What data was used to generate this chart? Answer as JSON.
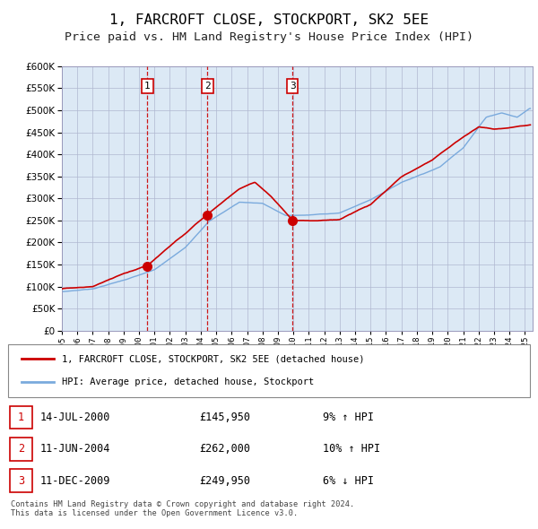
{
  "title": "1, FARCROFT CLOSE, STOCKPORT, SK2 5EE",
  "subtitle": "Price paid vs. HM Land Registry's House Price Index (HPI)",
  "title_fontsize": 11.5,
  "subtitle_fontsize": 9.5,
  "plot_bg_color": "#dce9f5",
  "ylim": [
    0,
    600000
  ],
  "yticks": [
    0,
    50000,
    100000,
    150000,
    200000,
    250000,
    300000,
    350000,
    400000,
    450000,
    500000,
    550000,
    600000
  ],
  "xlim_start": 1995.0,
  "xlim_end": 2025.5,
  "xtick_years": [
    1995,
    1996,
    1997,
    1998,
    1999,
    2000,
    2001,
    2002,
    2003,
    2004,
    2005,
    2006,
    2007,
    2008,
    2009,
    2010,
    2011,
    2012,
    2013,
    2014,
    2015,
    2016,
    2017,
    2018,
    2019,
    2020,
    2021,
    2022,
    2023,
    2024,
    2025
  ],
  "grid_color": "#b0b8d0",
  "sale_color": "#cc0000",
  "hpi_color": "#7aaadd",
  "vline_color": "#cc0000",
  "marker_size": 7,
  "transactions": [
    {
      "date_num": 2000.54,
      "price": 145950,
      "label": "1"
    },
    {
      "date_num": 2004.44,
      "price": 262000,
      "label": "2"
    },
    {
      "date_num": 2009.95,
      "price": 249950,
      "label": "3"
    }
  ],
  "table_rows": [
    {
      "num": "1",
      "date": "14-JUL-2000",
      "price": "£145,950",
      "change": "9% ↑ HPI"
    },
    {
      "num": "2",
      "date": "11-JUN-2004",
      "price": "£262,000",
      "change": "10% ↑ HPI"
    },
    {
      "num": "3",
      "date": "11-DEC-2009",
      "price": "£249,950",
      "change": "6% ↓ HPI"
    }
  ],
  "legend_sale_label": "1, FARCROFT CLOSE, STOCKPORT, SK2 5EE (detached house)",
  "legend_hpi_label": "HPI: Average price, detached house, Stockport",
  "footer": "Contains HM Land Registry data © Crown copyright and database right 2024.\nThis data is licensed under the Open Government Licence v3.0.",
  "number_box_color": "#cc0000",
  "sale_ctrl_t": [
    1995.0,
    1997.0,
    1999.0,
    2000.54,
    2002.5,
    2004.44,
    2006.5,
    2007.5,
    2008.5,
    2009.95,
    2011.5,
    2013.0,
    2015.0,
    2017.0,
    2019.0,
    2020.5,
    2022.0,
    2023.0,
    2024.0,
    2025.3
  ],
  "sale_ctrl_v": [
    95000,
    100000,
    128000,
    145950,
    205000,
    262000,
    320000,
    335000,
    305000,
    249950,
    248000,
    252000,
    285000,
    348000,
    385000,
    425000,
    460000,
    455000,
    458000,
    465000
  ],
  "hpi_ctrl_t": [
    1995.0,
    1997.0,
    1999.0,
    2001.0,
    2003.0,
    2004.5,
    2006.5,
    2008.0,
    2009.5,
    2011.0,
    2013.0,
    2015.0,
    2017.0,
    2019.5,
    2021.0,
    2022.5,
    2023.5,
    2024.5,
    2025.3
  ],
  "hpi_ctrl_v": [
    88000,
    95000,
    115000,
    138000,
    188000,
    248000,
    292000,
    290000,
    262000,
    263000,
    268000,
    298000,
    338000,
    374000,
    418000,
    488000,
    498000,
    488000,
    508000
  ]
}
